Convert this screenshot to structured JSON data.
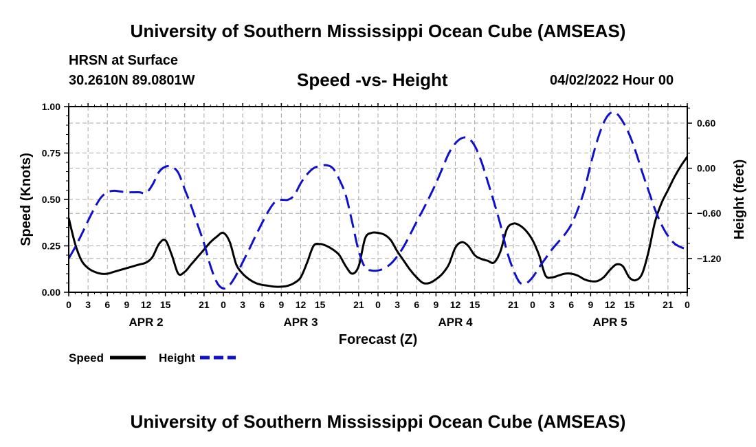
{
  "header": {
    "title": "University of Southern Mississippi Ocean Cube (AMSEAS)",
    "station": "HRSN at Surface",
    "coords": "30.2610N  89.0801W",
    "subtitle": "Speed -vs- Height",
    "datetime": "04/02/2022 Hour 00"
  },
  "footer": {
    "title": "University of Southern Mississippi Ocean Cube (AMSEAS)"
  },
  "colors": {
    "speed": "#000000",
    "height": "#1010c8",
    "grid": "#a8a8a8"
  },
  "chart_data": {
    "type": "line",
    "title": "Speed -vs- Height",
    "xlabel": "Forecast (Z)",
    "ylabel": "Speed (Knots)",
    "y2label": "Height (feet)",
    "grid": true,
    "legend_position": "bottom-left",
    "xlim": [
      0,
      96
    ],
    "ylim": [
      0,
      1.0
    ],
    "y2lim": [
      -1.65,
      0.82
    ],
    "x_ticks": [
      0,
      3,
      6,
      9,
      12,
      15,
      18,
      21,
      24,
      27,
      30,
      33,
      36,
      39,
      42,
      45,
      48,
      51,
      54,
      57,
      60,
      63,
      66,
      69,
      72,
      75,
      78,
      81,
      84,
      87,
      90,
      93,
      96
    ],
    "x_tick_labels": [
      "0",
      "3",
      "6",
      "9",
      "12",
      "15",
      "",
      "21",
      "0",
      "3",
      "6",
      "9",
      "12",
      "15",
      "",
      "21",
      "0",
      "3",
      "6",
      "9",
      "12",
      "15",
      "",
      "21",
      "0",
      "3",
      "6",
      "9",
      "12",
      "15",
      "",
      "21",
      "0"
    ],
    "y_ticks": [
      0,
      0.25,
      0.5,
      0.75,
      1.0
    ],
    "y_tick_labels": [
      "0.00",
      "0.25",
      "0.50",
      "0.75",
      "1.00"
    ],
    "y2_ticks": [
      -1.2,
      -0.6,
      0.0,
      0.6
    ],
    "y2_tick_labels": [
      "−1.20",
      "−0.60",
      "0.00",
      "0.60"
    ],
    "days": [
      {
        "label": "APR 2",
        "center": 12
      },
      {
        "label": "APR 3",
        "center": 36
      },
      {
        "label": "APR 4",
        "center": 60
      },
      {
        "label": "APR 5",
        "center": 84
      }
    ],
    "series": [
      {
        "name": "Speed",
        "axis": "left",
        "style": "solid",
        "x": [
          0,
          1,
          2,
          3,
          4,
          5,
          6,
          7,
          8,
          9,
          10,
          11,
          12,
          13,
          14,
          15,
          16,
          17,
          18,
          19,
          20,
          21,
          22,
          23,
          24,
          25,
          26,
          27,
          28,
          29,
          30,
          31,
          32,
          33,
          34,
          35,
          36,
          37,
          38,
          39,
          40,
          41,
          42,
          43,
          44,
          45,
          46,
          47,
          48,
          49,
          50,
          51,
          52,
          53,
          54,
          55,
          56,
          57,
          58,
          59,
          60,
          61,
          62,
          63,
          64,
          65,
          66,
          67,
          68,
          69,
          70,
          71,
          72,
          73,
          74,
          75,
          76,
          77,
          78,
          79,
          80,
          81,
          82,
          83,
          84,
          85,
          86,
          87,
          88,
          89,
          90,
          91,
          92,
          93,
          94,
          95,
          96
        ],
        "values": [
          0.4,
          0.26,
          0.17,
          0.13,
          0.11,
          0.1,
          0.1,
          0.11,
          0.12,
          0.13,
          0.14,
          0.15,
          0.16,
          0.19,
          0.26,
          0.28,
          0.2,
          0.1,
          0.11,
          0.15,
          0.19,
          0.23,
          0.27,
          0.3,
          0.32,
          0.27,
          0.15,
          0.1,
          0.07,
          0.05,
          0.04,
          0.035,
          0.03,
          0.03,
          0.035,
          0.05,
          0.08,
          0.16,
          0.25,
          0.26,
          0.25,
          0.23,
          0.2,
          0.14,
          0.1,
          0.14,
          0.29,
          0.32,
          0.32,
          0.31,
          0.28,
          0.22,
          0.17,
          0.12,
          0.08,
          0.05,
          0.05,
          0.07,
          0.1,
          0.15,
          0.24,
          0.27,
          0.25,
          0.2,
          0.18,
          0.17,
          0.16,
          0.22,
          0.34,
          0.37,
          0.36,
          0.33,
          0.28,
          0.2,
          0.09,
          0.08,
          0.09,
          0.1,
          0.1,
          0.09,
          0.07,
          0.06,
          0.06,
          0.08,
          0.12,
          0.15,
          0.14,
          0.08,
          0.065,
          0.1,
          0.22,
          0.38,
          0.48,
          0.55,
          0.62,
          0.68,
          0.73
        ]
      },
      {
        "name": "Height",
        "axis": "right",
        "style": "dashed",
        "x": [
          0,
          1,
          2,
          3,
          4,
          5,
          6,
          7,
          8,
          9,
          10,
          11,
          12,
          13,
          14,
          15,
          16,
          17,
          18,
          19,
          20,
          21,
          22,
          23,
          24,
          25,
          26,
          27,
          28,
          29,
          30,
          31,
          32,
          33,
          34,
          35,
          36,
          37,
          38,
          39,
          40,
          41,
          42,
          43,
          44,
          45,
          46,
          47,
          48,
          49,
          50,
          51,
          52,
          53,
          54,
          55,
          56,
          57,
          58,
          59,
          60,
          61,
          62,
          63,
          64,
          65,
          66,
          67,
          68,
          69,
          70,
          71,
          72,
          73,
          74,
          75,
          76,
          77,
          78,
          79,
          80,
          81,
          82,
          83,
          84,
          85,
          86,
          87,
          88,
          89,
          90,
          91,
          92,
          93,
          94,
          95,
          96
        ],
        "values": [
          -1.2,
          -1.05,
          -0.88,
          -0.7,
          -0.53,
          -0.39,
          -0.32,
          -0.3,
          -0.31,
          -0.32,
          -0.32,
          -0.32,
          -0.33,
          -0.22,
          -0.05,
          0.02,
          0.02,
          -0.06,
          -0.28,
          -0.5,
          -0.75,
          -1.0,
          -1.3,
          -1.52,
          -1.6,
          -1.55,
          -1.42,
          -1.25,
          -1.08,
          -0.9,
          -0.73,
          -0.57,
          -0.45,
          -0.42,
          -0.42,
          -0.36,
          -0.2,
          -0.08,
          0.0,
          0.03,
          0.04,
          0.0,
          -0.15,
          -0.36,
          -0.72,
          -1.1,
          -1.32,
          -1.36,
          -1.36,
          -1.33,
          -1.27,
          -1.17,
          -1.04,
          -0.88,
          -0.71,
          -0.55,
          -0.38,
          -0.2,
          0.0,
          0.2,
          0.33,
          0.4,
          0.4,
          0.3,
          0.1,
          -0.17,
          -0.45,
          -0.75,
          -1.1,
          -1.35,
          -1.52,
          -1.53,
          -1.45,
          -1.32,
          -1.2,
          -1.08,
          -0.98,
          -0.88,
          -0.75,
          -0.55,
          -0.3,
          0.05,
          0.36,
          0.6,
          0.73,
          0.73,
          0.62,
          0.45,
          0.22,
          -0.05,
          -0.3,
          -0.55,
          -0.75,
          -0.9,
          -1.0,
          -1.05,
          -1.08
        ]
      }
    ]
  }
}
